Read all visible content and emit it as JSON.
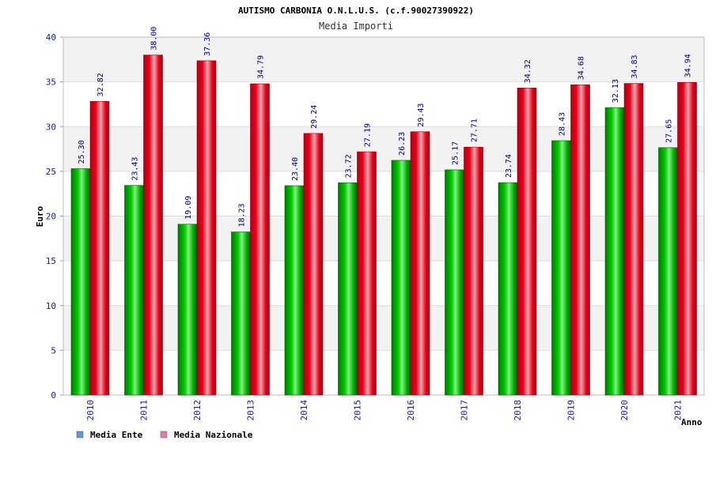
{
  "chart_data": {
    "type": "bar",
    "title": "AUTISMO CARBONIA O.N.L.U.S. (c.f.90027390922)",
    "subtitle": "Media Importi",
    "ylabel": "Euro",
    "xlabel": "Anno",
    "ylim": [
      0,
      40
    ],
    "yticks": [
      "0",
      "5",
      "10",
      "15",
      "20",
      "25",
      "30",
      "35",
      "40"
    ],
    "grid": true,
    "legend_position": "bottom-left",
    "categories": [
      "2010",
      "2011",
      "2012",
      "2013",
      "2014",
      "2015",
      "2016",
      "2017",
      "2018",
      "2019",
      "2020",
      "2021"
    ],
    "series": [
      {
        "name": "Media Ente",
        "color": "#00b000",
        "legend_color": "#5b9bd5",
        "values": [
          25.3,
          23.43,
          19.09,
          18.23,
          23.4,
          23.72,
          26.23,
          25.17,
          23.74,
          28.43,
          32.13,
          27.65
        ],
        "labels": [
          "25.30",
          "23.43",
          "19.09",
          "18.23",
          "23.40",
          "23.72",
          "26.23",
          "25.17",
          "23.74",
          "28.43",
          "32.13",
          "27.65"
        ]
      },
      {
        "name": "Media Nazionale",
        "color": "#e8001c",
        "legend_color": "#e07ab0",
        "values": [
          32.82,
          38.0,
          37.36,
          34.79,
          29.24,
          27.19,
          29.43,
          27.71,
          34.32,
          34.68,
          34.83,
          34.94
        ],
        "labels": [
          "32.82",
          "38.00",
          "37.36",
          "34.79",
          "29.24",
          "27.19",
          "29.43",
          "27.71",
          "34.32",
          "34.68",
          "34.83",
          "34.94"
        ]
      }
    ]
  }
}
